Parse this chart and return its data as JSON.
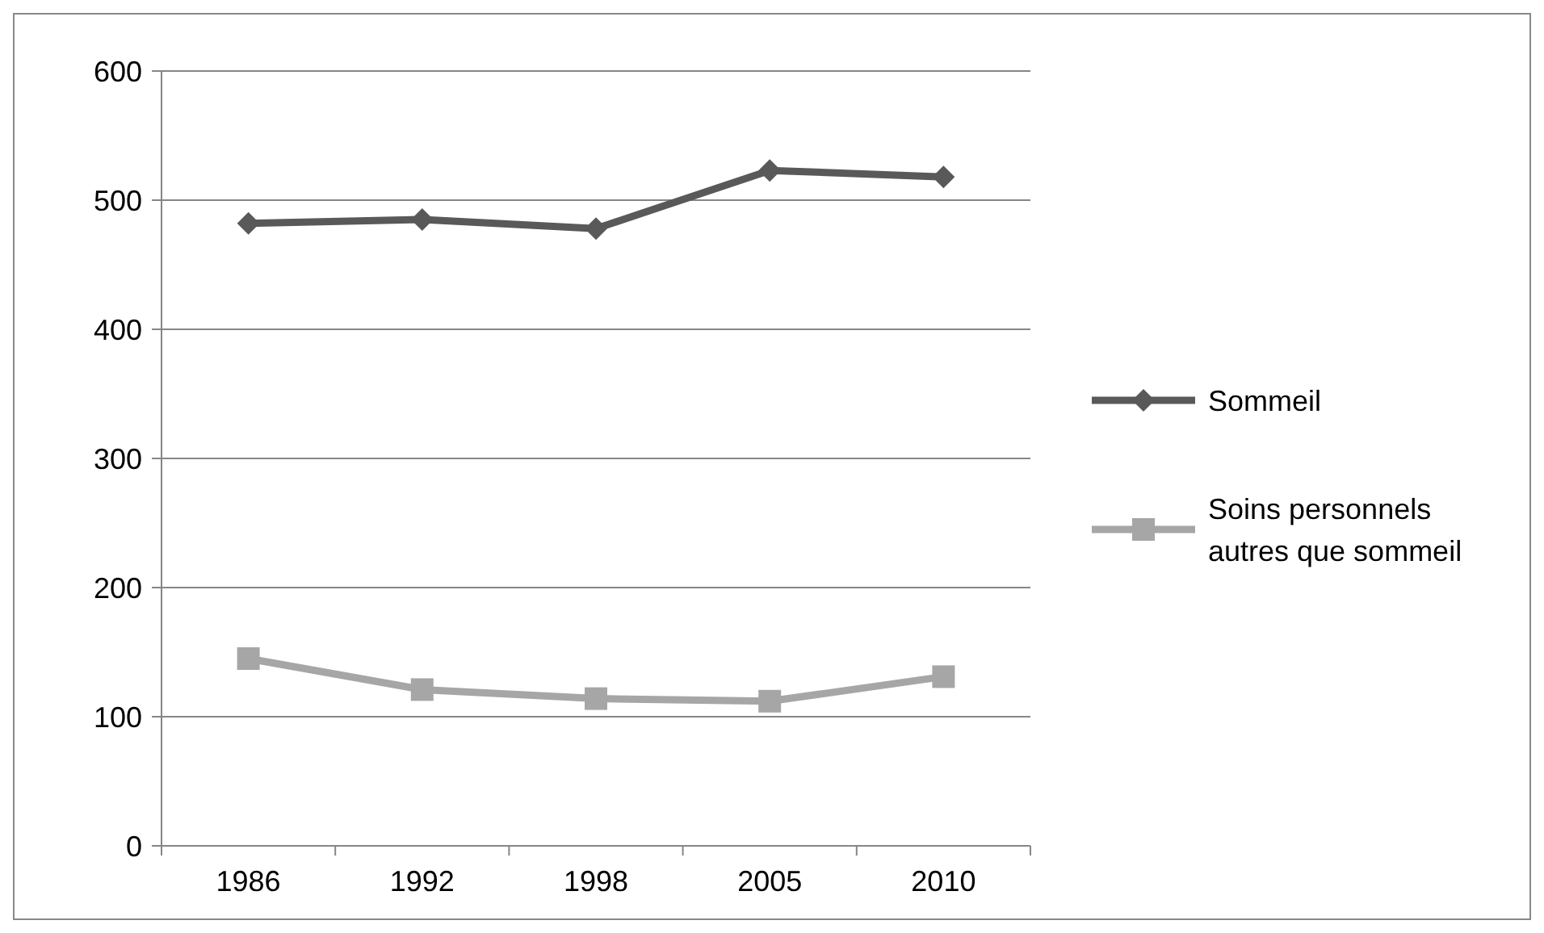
{
  "chart_data": {
    "type": "line",
    "categories": [
      "1986",
      "1992",
      "1998",
      "2005",
      "2010"
    ],
    "series": [
      {
        "name": "Sommeil",
        "color": "#595959",
        "values": [
          482,
          485,
          478,
          523,
          518
        ],
        "marker": "diamond"
      },
      {
        "name": "Soins personnels autres que sommeil",
        "color": "#a6a6a6",
        "values": [
          145,
          121,
          114,
          112,
          131
        ],
        "marker": "square"
      }
    ],
    "ylim": [
      0,
      600
    ],
    "yticks": [
      0,
      100,
      200,
      300,
      400,
      500,
      600
    ],
    "grid": "y",
    "legend": "right"
  }
}
